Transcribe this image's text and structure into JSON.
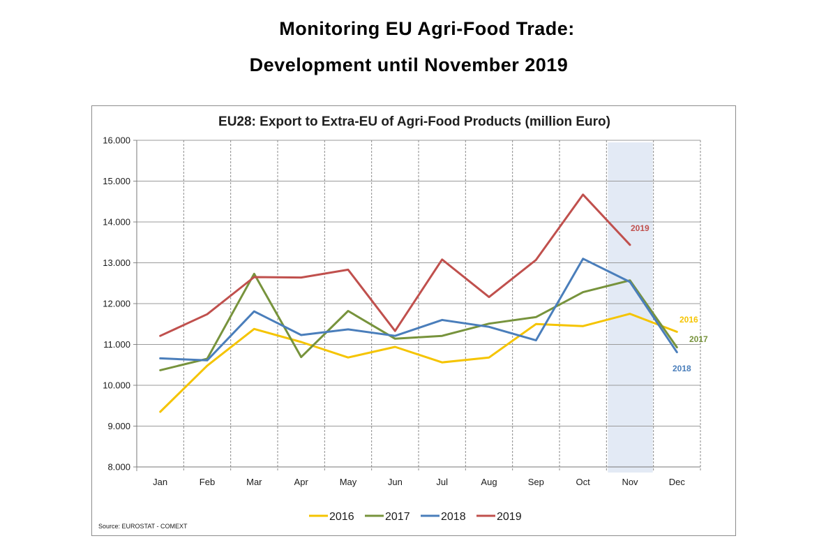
{
  "page": {
    "heading_line1": "Monitoring EU Agri-Food Trade:",
    "heading_line2": "Development until November 2019"
  },
  "chart_data": {
    "type": "line",
    "title": "EU28: Export to Extra-EU of Agri-Food Products (million Euro)",
    "xlabel": "",
    "ylabel": "",
    "categories": [
      "Jan",
      "Feb",
      "Mar",
      "Apr",
      "May",
      "Jun",
      "Jul",
      "Aug",
      "Sep",
      "Oct",
      "Nov",
      "Dec"
    ],
    "ylim": [
      8000,
      16000
    ],
    "yticks": [
      8000,
      9000,
      10000,
      11000,
      12000,
      13000,
      14000,
      15000,
      16000
    ],
    "ytick_labels": [
      "8.000",
      "9.000",
      "10.000",
      "11.000",
      "12.000",
      "13.000",
      "14.000",
      "15.000",
      "16.000"
    ],
    "grid": "vertical dashed, horizontal solid",
    "highlight_category": "Nov",
    "highlight_color": "#e3eaf5",
    "legend_position": "bottom",
    "series": [
      {
        "name": "2016",
        "color": "#f5c400",
        "end_label": "2016",
        "values": [
          9350,
          10480,
          11380,
          11060,
          10680,
          10940,
          10560,
          10680,
          11500,
          11450,
          11750,
          11310
        ]
      },
      {
        "name": "2017",
        "color": "#77933c",
        "end_label": "2017",
        "values": [
          10370,
          10650,
          12730,
          10690,
          11820,
          11140,
          11210,
          11510,
          11670,
          12280,
          12570,
          10930
        ]
      },
      {
        "name": "2018",
        "color": "#4a7ebb",
        "end_label": "2018",
        "values": [
          10660,
          10610,
          11810,
          11230,
          11370,
          11210,
          11600,
          11430,
          11100,
          13100,
          12530,
          10810
        ]
      },
      {
        "name": "2019",
        "color": "#c0504d",
        "end_label": "2019",
        "values": [
          11210,
          11740,
          12650,
          12640,
          12830,
          11330,
          13080,
          12160,
          13070,
          14670,
          13440,
          null
        ]
      }
    ],
    "source": "Source: EUROSTAT - COMEXT"
  }
}
